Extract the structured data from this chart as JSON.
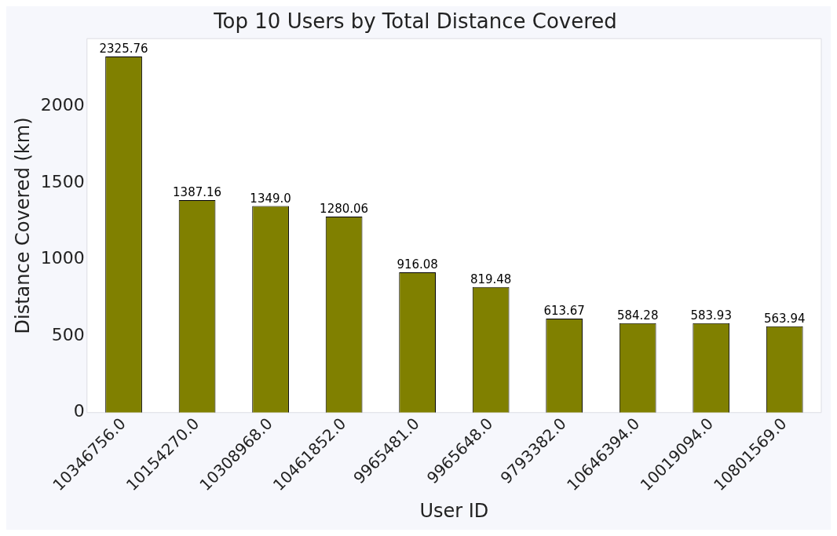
{
  "chart_data": {
    "type": "bar",
    "title": "Top 10 Users by Total Distance Covered",
    "xlabel": "User ID",
    "ylabel": "Distance Covered (km)",
    "categories": [
      "10346756.0",
      "10154270.0",
      "10308968.0",
      "10461852.0",
      "9965481.0",
      "9965648.0",
      "9793382.0",
      "10646394.0",
      "10019094.0",
      "10801569.0"
    ],
    "values": [
      2325.76,
      1387.16,
      1349.0,
      1280.06,
      916.08,
      819.48,
      613.67,
      584.28,
      583.93,
      563.94
    ],
    "value_labels": [
      "2325.76",
      "1387.16",
      "1349.0",
      "1280.06",
      "916.08",
      "819.48",
      "613.67",
      "584.28",
      "583.93",
      "563.94"
    ],
    "color": "#808000",
    "ylim": [
      0,
      2442
    ],
    "yticks": [
      0,
      500,
      1000,
      1500,
      2000
    ],
    "grid": false,
    "legend": false
  }
}
